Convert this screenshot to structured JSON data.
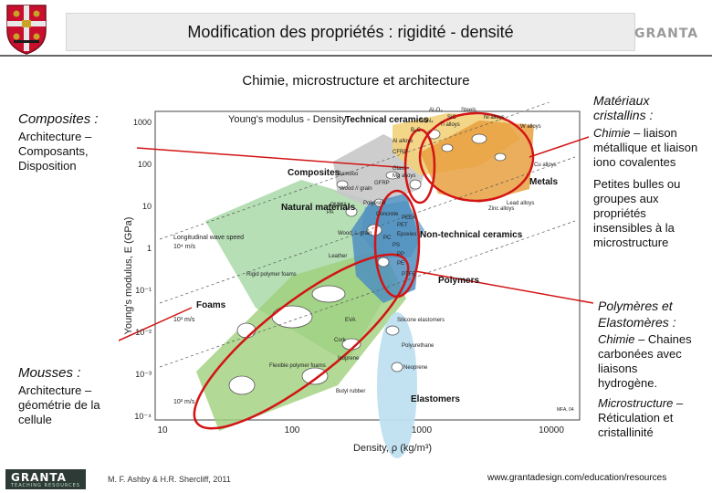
{
  "header": {
    "title": "Modification des propriétés : rigidité - densité",
    "brand": "GRANTA"
  },
  "subtitle": "Chimie, microstructure et architecture",
  "left_notes": {
    "composites": {
      "heading": "Composites :",
      "line1": "Architecture –",
      "line2": "Composants,",
      "line3": "Disposition"
    },
    "mousses": {
      "heading": "Mousses :",
      "line1": "Architecture –",
      "line2": "géométrie de la",
      "line3": "cellule"
    }
  },
  "right_notes": {
    "cristallins": {
      "heading1": "Matériaux",
      "heading2": "cristallins :",
      "chem_label": "Chimie",
      "chem_rest": " –  liaison",
      "line2": "métallique et liaison",
      "line3": "iono covalentes"
    },
    "bulles": {
      "line1": "Petites bulles ou",
      "line2": "groupes aux",
      "line3": "propriétés",
      "line4": "insensibles à la",
      "line5": "microstructure"
    },
    "polymeres": {
      "heading1": "Polymères et",
      "heading2": "Elastomères :",
      "chem_label": "Chimie",
      "chem_rest": " – Chaines",
      "c2": "carbonées avec",
      "c3": "liaisons",
      "c4": "hydrogène.",
      "micro_label": "Microstructure",
      "micro_rest": " –",
      "m2": "Réticulation et",
      "m3": "cristallinité"
    }
  },
  "chart_data": {
    "type": "scatter",
    "title": "Young's modulus - Density",
    "xlabel": "Density, ρ  (kg/m³)",
    "ylabel": "Young's modulus, E (GPa)",
    "x_scale": "log",
    "y_scale": "log",
    "xlim": [
      10,
      30000
    ],
    "ylim": [
      0.0001,
      1000
    ],
    "x_ticks": [
      "10",
      "100",
      "1000",
      "10000"
    ],
    "y_ticks": [
      "1000",
      "100",
      "10",
      "1",
      "10⁻¹",
      "10⁻²",
      "10⁻³",
      "10⁻⁴"
    ],
    "families": [
      {
        "name": "Technical ceramics",
        "color": "#f2d27a"
      },
      {
        "name": "Composites",
        "color": "#c8c8c8"
      },
      {
        "name": "Metals",
        "color": "#d94a3c"
      },
      {
        "name": "Natural materials",
        "color": "#7ac47a"
      },
      {
        "name": "Non-technical ceramics",
        "color": "#6aa8c8"
      },
      {
        "name": "Polymers",
        "color": "#4f8fc0"
      },
      {
        "name": "Foams",
        "color": "#9fcf7a"
      },
      {
        "name": "Elastomers",
        "color": "#bfe0f0"
      }
    ],
    "material_labels": [
      "Al₂O₃",
      "SiC",
      "Steels",
      "Ni alloys",
      "Si₃N₄",
      "Ti alloys",
      "B₄C",
      "W alloys",
      "Al alloys",
      "CFRP",
      "Glass",
      "Mg alloys",
      "GFRP",
      "Cu alloys",
      "Zinc alloys",
      "Lead alloys",
      "Bamboo",
      "Wood // grain",
      "PMMA",
      "PA",
      "Polyester",
      "Concrete",
      "PEEK",
      "PET",
      "Epoxies",
      "PC",
      "PS",
      "PP",
      "PE",
      "PTFE",
      "Wood ⊥ grain",
      "Leather",
      "Rigid polymer foams",
      "EVA",
      "Silicone elastomers",
      "Polyurethane",
      "Cork",
      "Isoprene",
      "Neoprene",
      "Flexible polymer foams",
      "Butyl rubber"
    ],
    "guide_lines": [
      "Longitudinal wave speed",
      "10⁴ m/s",
      "10³ m/s",
      "10² m/s"
    ],
    "annotation": "MFA, 04",
    "highlight_circles": 4
  },
  "footer": {
    "logo": "GRANTA",
    "logo_sub": "TEACHING RESOURCES",
    "credit": "M. F. Ashby & H.R. Shercliff, 2011",
    "url": "www.grantadesign.com/education/resources"
  }
}
